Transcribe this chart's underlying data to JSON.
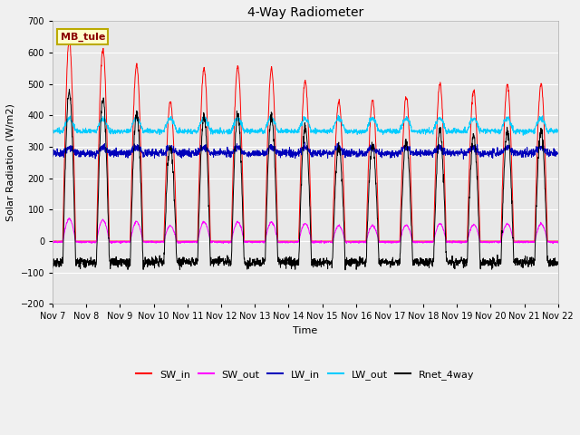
{
  "title": "4-Way Radiometer",
  "xlabel": "Time",
  "ylabel": "Solar Radiation (W/m2)",
  "ylim": [
    -200,
    700
  ],
  "yticks": [
    -200,
    -100,
    0,
    100,
    200,
    300,
    400,
    500,
    600,
    700
  ],
  "station_label": "MB_tule",
  "fig_bg_color": "#f0f0f0",
  "plot_bg_color": "#e8e8e8",
  "legend_entries": [
    "SW_in",
    "SW_out",
    "LW_in",
    "LW_out",
    "Rnet_4way"
  ],
  "line_colors": [
    "#ff0000",
    "#ff00ff",
    "#0000bb",
    "#00ccff",
    "#000000"
  ],
  "n_days": 15,
  "SW_in_peaks": [
    640,
    610,
    560,
    445,
    550,
    555,
    550,
    510,
    445,
    450,
    460,
    500,
    480,
    500,
    500
  ],
  "LW_out_base": 350,
  "LW_in_base": 280,
  "sunrise": 0.3,
  "sunset": 0.68
}
